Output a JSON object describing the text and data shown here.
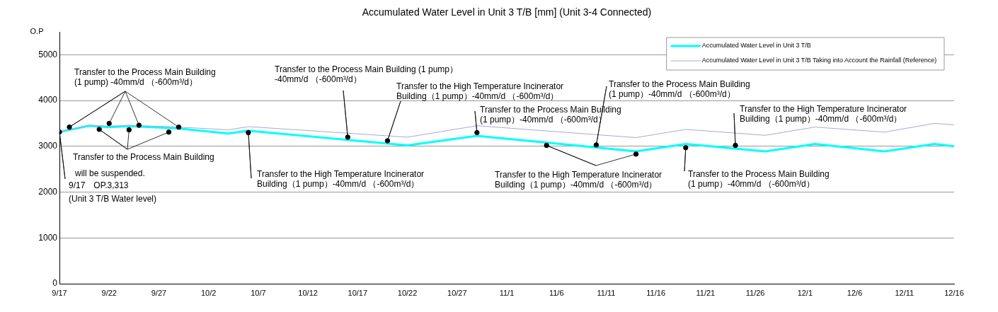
{
  "chart_data": {
    "type": "line",
    "title": "Accumulated Water Level in Unit 3 T/B [mm] (Unit 3-4 Connected)",
    "ylabel": "O.P",
    "x": [
      "--09-17",
      "--09-20",
      "--09-22",
      "--09-24",
      "--09-29",
      "--10-04",
      "--10-06",
      "--10-22",
      "--10-29",
      "--11-14",
      "--11-19",
      "--11-27",
      "--12-02",
      "--12-09",
      "--12-14",
      "--12-16"
    ],
    "series": [
      {
        "name": "Accumulated Water Level in Unit 3 T/B",
        "color": "#00ffff",
        "values": [
          3313,
          3450,
          3420,
          3440,
          3390,
          3280,
          3340,
          3020,
          3230,
          2890,
          3050,
          2890,
          3050,
          2890,
          3050,
          3000
        ]
      },
      {
        "name": "Accumulated Water Level in Unit 3 T/B Taking into Account the Rainfall (Reference)",
        "color": "#a8a8d8",
        "values": [
          3313,
          3460,
          3440,
          3460,
          3420,
          3360,
          3430,
          3200,
          3450,
          3190,
          3370,
          3240,
          3420,
          3310,
          3500,
          3470
        ]
      },
      {
        "type": "scatter",
        "color": "#000000",
        "marker": "circle",
        "x": [
          "--09-17",
          "--09-18",
          "--09-21",
          "--09-22",
          "--09-24",
          "--09-25",
          "--09-28",
          "--09-29",
          "--10-06",
          "--10-16",
          "--10-20",
          "--10-29",
          "--11-05",
          "--11-10",
          "--11-14",
          "--11-19",
          "--11-24"
        ],
        "values": [
          3313,
          3420,
          3370,
          3500,
          3360,
          3460,
          3310,
          3420,
          3300,
          3200,
          3120,
          3300,
          3020,
          3030,
          2830,
          2970,
          3020
        ]
      }
    ],
    "marker": "none",
    "grid": "y",
    "legend": "top right",
    "xlim": [
      "--09-17",
      "--12-16"
    ],
    "xticks": [
      {
        "value": "--09-17",
        "label": "9/17"
      },
      {
        "value": "--09-22",
        "label": "9/22"
      },
      {
        "value": "--09-27",
        "label": "9/27"
      },
      {
        "value": "--10-02",
        "label": "10/2"
      },
      {
        "value": "--10-07",
        "label": "10/7"
      },
      {
        "value": "--10-12",
        "label": "10/12"
      },
      {
        "value": "--10-17",
        "label": "10/17"
      },
      {
        "value": "--10-22",
        "label": "10/22"
      },
      {
        "value": "--10-27",
        "label": "10/27"
      },
      {
        "value": "--11-01",
        "label": "11/1"
      },
      {
        "value": "--11-06",
        "label": "11/6"
      },
      {
        "value": "--11-11",
        "label": "11/11"
      },
      {
        "value": "--11-16",
        "label": "11/16"
      },
      {
        "value": "--11-21",
        "label": "11/21"
      },
      {
        "value": "--11-26",
        "label": "11/26"
      },
      {
        "value": "--12-01",
        "label": "12/1"
      },
      {
        "value": "--12-06",
        "label": "12/6"
      },
      {
        "value": "--12-11",
        "label": "12/11"
      },
      {
        "value": "--12-16",
        "label": "12/16"
      }
    ],
    "ylim": [
      0,
      5500
    ],
    "yticks": [
      0,
      1000,
      2000,
      3000,
      4000,
      5000
    ],
    "annotations": [
      {
        "text": "Transfer to the Process Main Building\n(1 pump) -40mm/d （-600m³/d）",
        "x": "--09-18",
        "y": 3420
      },
      {
        "text": "Transfer to the Process Main Building\nwill be suspended.",
        "x": "--09-21",
        "y": 3370
      },
      {
        "text": "9/17　OP.3,313\n(Unit 3 T/B Water level)",
        "x": "--09-17",
        "y": 3313
      },
      {
        "text": "Transfer to the High Temperature Incinerator\nBuilding（1 pump）-40mm/d （-600m³/d）",
        "x": "--10-06",
        "y": 3300
      },
      {
        "text": "Transfer to the Process Main Building (1 pump）\n-40mm/d （-600m³/d）",
        "x": "--10-16",
        "y": 3200
      },
      {
        "text": "Transfer to the High Temperature Incinerator\nBuilding（1 pump）-40mm/d （-600m³/d）",
        "x": "--10-20",
        "y": 3120
      },
      {
        "text": "Transfer to the Process Main Building\n(1 pump）-40mm/d （-600m³/d）",
        "x": "--10-29",
        "y": 3300
      },
      {
        "text": "Transfer to the High Temperature Incinerator\nBuilding（1 pump）-40mm/d （-600m³/d）",
        "x": "--11-05",
        "y": 3020
      },
      {
        "text": "Transfer to the Process Main Building\n(1 pump）-40mm/d （-600m³/d）",
        "x": "--11-10",
        "y": 3030
      },
      {
        "text": "Transfer to the Process Main Building\n(1 pump）-40mm/d （-600m³/d）",
        "x": "--11-19",
        "y": 2970
      },
      {
        "text": "Transfer to the High Temperature Incinerator\nBuilding（1 pump）-40mm/d （-600m³/d）",
        "x": "--11-24",
        "y": 3020
      }
    ]
  }
}
